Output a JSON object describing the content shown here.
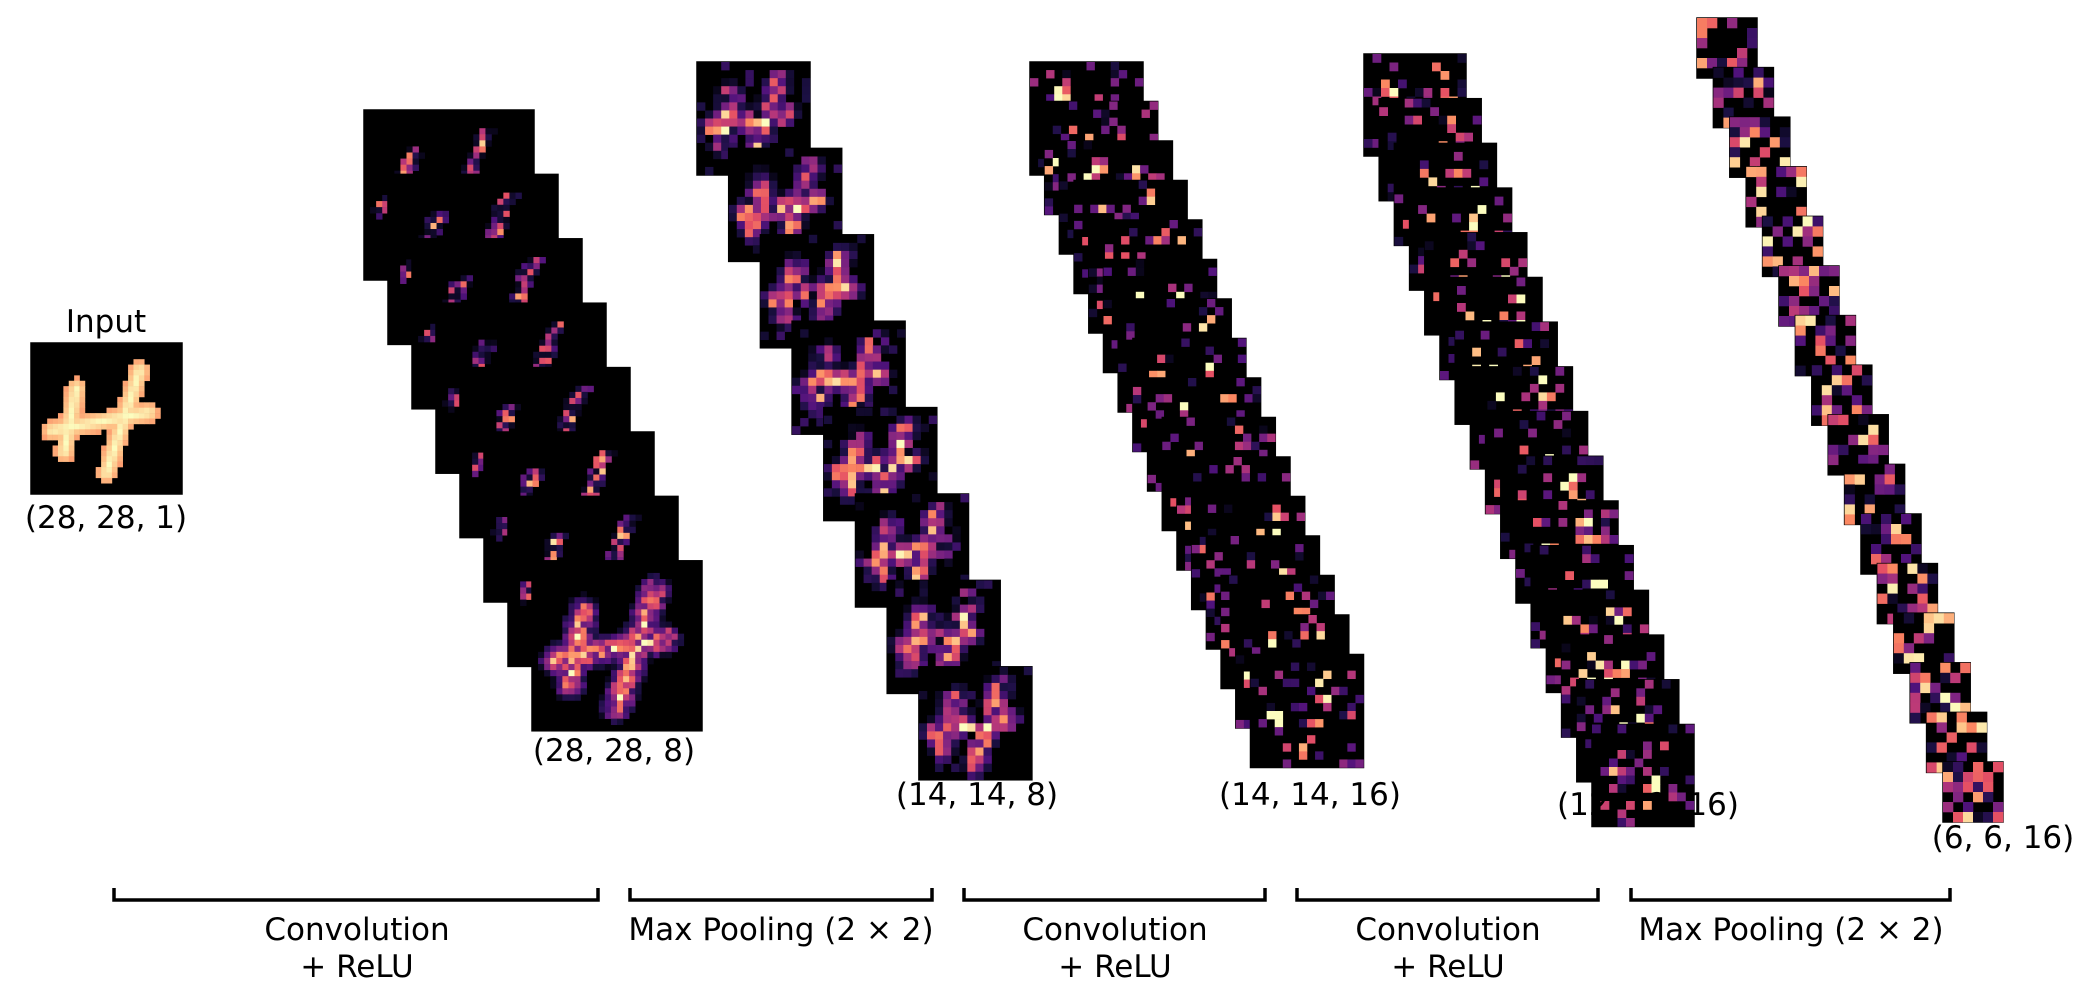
{
  "input": {
    "title": "Input",
    "shape": "(28, 28, 1)"
  },
  "layers": [
    {
      "shape": "(28, 28, 8)",
      "maps": 8,
      "resolution": 28
    },
    {
      "shape": "(14, 14, 8)",
      "maps": 8,
      "resolution": 14
    },
    {
      "shape": "(14, 14, 16)",
      "maps": 16,
      "resolution": 14
    },
    {
      "shape": "(12, 12, 16)",
      "maps": 16,
      "resolution": 12
    },
    {
      "shape": "(6, 6, 16)",
      "maps": 16,
      "resolution": 6
    }
  ],
  "stages": [
    {
      "line1": "Convolution",
      "line2": "+ ReLU"
    },
    {
      "line1": "Max Pooling (2 × 2)",
      "line2": ""
    },
    {
      "line1": "Convolution",
      "line2": "+ ReLU"
    },
    {
      "line1": "Convolution",
      "line2": "+ ReLU"
    },
    {
      "line1": "Max Pooling (2 × 2)",
      "line2": ""
    }
  ],
  "colors": {
    "colormap": "magma",
    "background": "#000000",
    "bracket": "#000000"
  }
}
